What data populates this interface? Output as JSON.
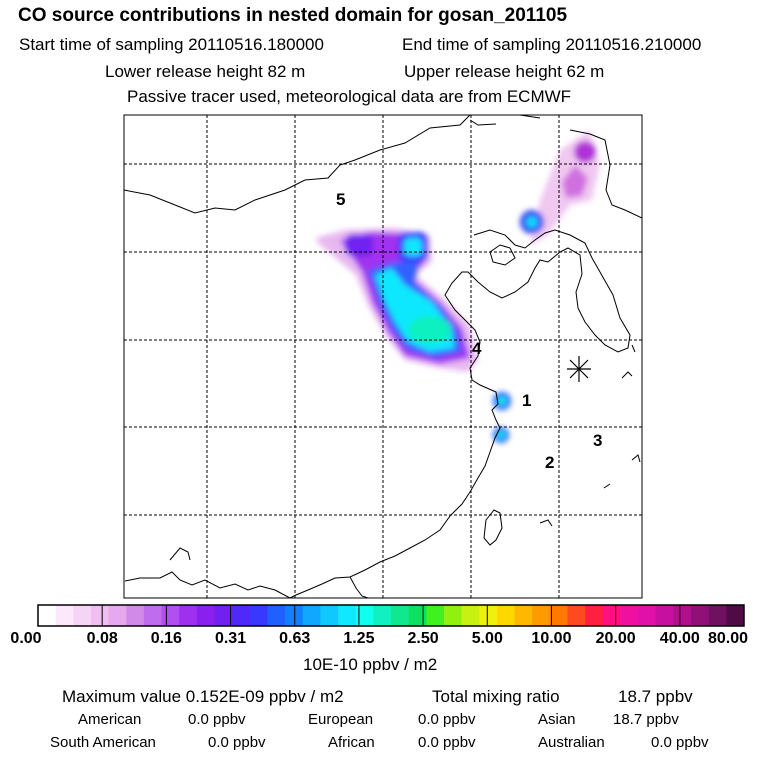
{
  "header": {
    "title": "CO  source contributions in nested domain for gosan_201105",
    "start": "Start time of sampling 20110516.180000",
    "end": "End time of sampling 20110516.210000",
    "lower": "Lower release height   82 m",
    "upper": "Upper release height   62 m",
    "note": "Passive tracer used, meteorological data are from ECMWF"
  },
  "map": {
    "labels": [
      "5",
      "4",
      "1",
      "2",
      "3"
    ]
  },
  "colorbar": {
    "colors": [
      "#ffffff",
      "#fbe9fb",
      "#f6d4f6",
      "#f0bef0",
      "#e6a8ee",
      "#d18ae8",
      "#c06cee",
      "#b050f2",
      "#a030f0",
      "#8a20ee",
      "#7020f0",
      "#5028f8",
      "#3838ff",
      "#2060ff",
      "#1080ff",
      "#10a8ff",
      "#10c8ff",
      "#10e8ff",
      "#10ffee",
      "#10f0c0",
      "#10e890",
      "#10e060",
      "#40f020",
      "#90f010",
      "#c8f010",
      "#f0f010",
      "#ffd800",
      "#ffb800",
      "#ff9a00",
      "#ff7800",
      "#ff4a20",
      "#ff2040",
      "#ff1080",
      "#f010a0",
      "#e010a8",
      "#c810a0",
      "#b0108c",
      "#901078",
      "#701060",
      "#500a48"
    ],
    "ticks": [
      "0.00",
      "0.08",
      "0.16",
      "0.31",
      "0.63",
      "1.25",
      "2.50",
      "5.00",
      "10.00",
      "20.00",
      "40.00",
      "80.00"
    ],
    "unit": "10E-10 ppbv / m2"
  },
  "stats": {
    "max": "Maximum value  0.152E-09 ppbv / m2",
    "total_label": "Total mixing ratio",
    "total_value": "18.7 ppbv",
    "american_label": "American",
    "american_value": "0.0 ppbv",
    "european_label": "European",
    "european_value": "0.0 ppbv",
    "asian_label": "Asian",
    "asian_value": "18.7 ppbv",
    "south_american_label": "South American",
    "south_american_value": "0.0 ppbv",
    "african_label": "African",
    "african_value": "0.0 ppbv",
    "australian_label": "Australian",
    "australian_value": "0.0 ppbv"
  },
  "chart_data": {
    "type": "heatmap",
    "title": "CO  source contributions in nested domain for gosan_201105",
    "color_scale_ticks": [
      0.0,
      0.08,
      0.16,
      0.31,
      0.63,
      1.25,
      2.5,
      5.0,
      10.0,
      20.0,
      40.0,
      80.0
    ],
    "unit": "10E-10 ppbv / m2",
    "maximum": "0.152E-09 ppbv / m2",
    "total_mixing_ratio_ppbv": 18.7,
    "region_contributions_ppbv": {
      "American": 0.0,
      "European": 0.0,
      "Asian": 18.7,
      "South American": 0.0,
      "African": 0.0,
      "Australian": 0.0
    },
    "annotations": [
      "5",
      "4",
      "1",
      "2",
      "3"
    ],
    "grid": true
  }
}
